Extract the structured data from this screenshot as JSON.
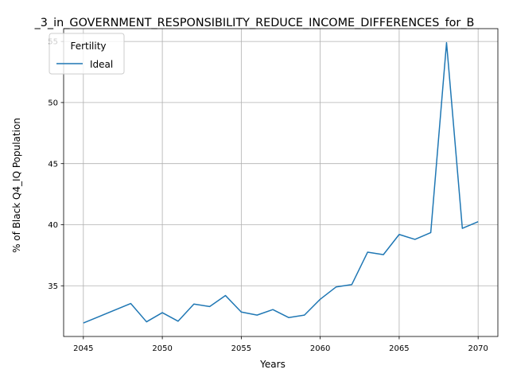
{
  "chart_data": {
    "type": "line",
    "title": "_3_in_GOVERNMENT_RESPONSIBILITY_REDUCE_INCOME_DIFFERENCES_for_B",
    "xlabel": "Years",
    "ylabel": "% of Black Q4_IQ Population",
    "xlim": [
      2043.75,
      2071.25
    ],
    "ylim": [
      30.85,
      56.05
    ],
    "x_ticks": [
      2045,
      2050,
      2055,
      2060,
      2065,
      2070
    ],
    "y_ticks": [
      35,
      40,
      45,
      50,
      55
    ],
    "grid": true,
    "legend": {
      "title": "Fertility",
      "placement": "top-left"
    },
    "series": [
      {
        "name": "Ideal",
        "color": "#1f77b4",
        "x": [
          2045,
          2048,
          2049,
          2050,
          2051,
          2052,
          2053,
          2054,
          2055,
          2056,
          2057,
          2058,
          2059,
          2060,
          2061,
          2062,
          2063,
          2064,
          2065,
          2066,
          2067,
          2068,
          2069,
          2070
        ],
        "y": [
          31.95,
          33.55,
          32.05,
          32.8,
          32.1,
          33.5,
          33.3,
          34.2,
          32.85,
          32.6,
          33.05,
          32.4,
          32.6,
          33.9,
          34.9,
          35.1,
          37.75,
          37.55,
          39.2,
          38.8,
          39.35,
          54.9,
          39.7,
          40.25
        ]
      }
    ]
  }
}
